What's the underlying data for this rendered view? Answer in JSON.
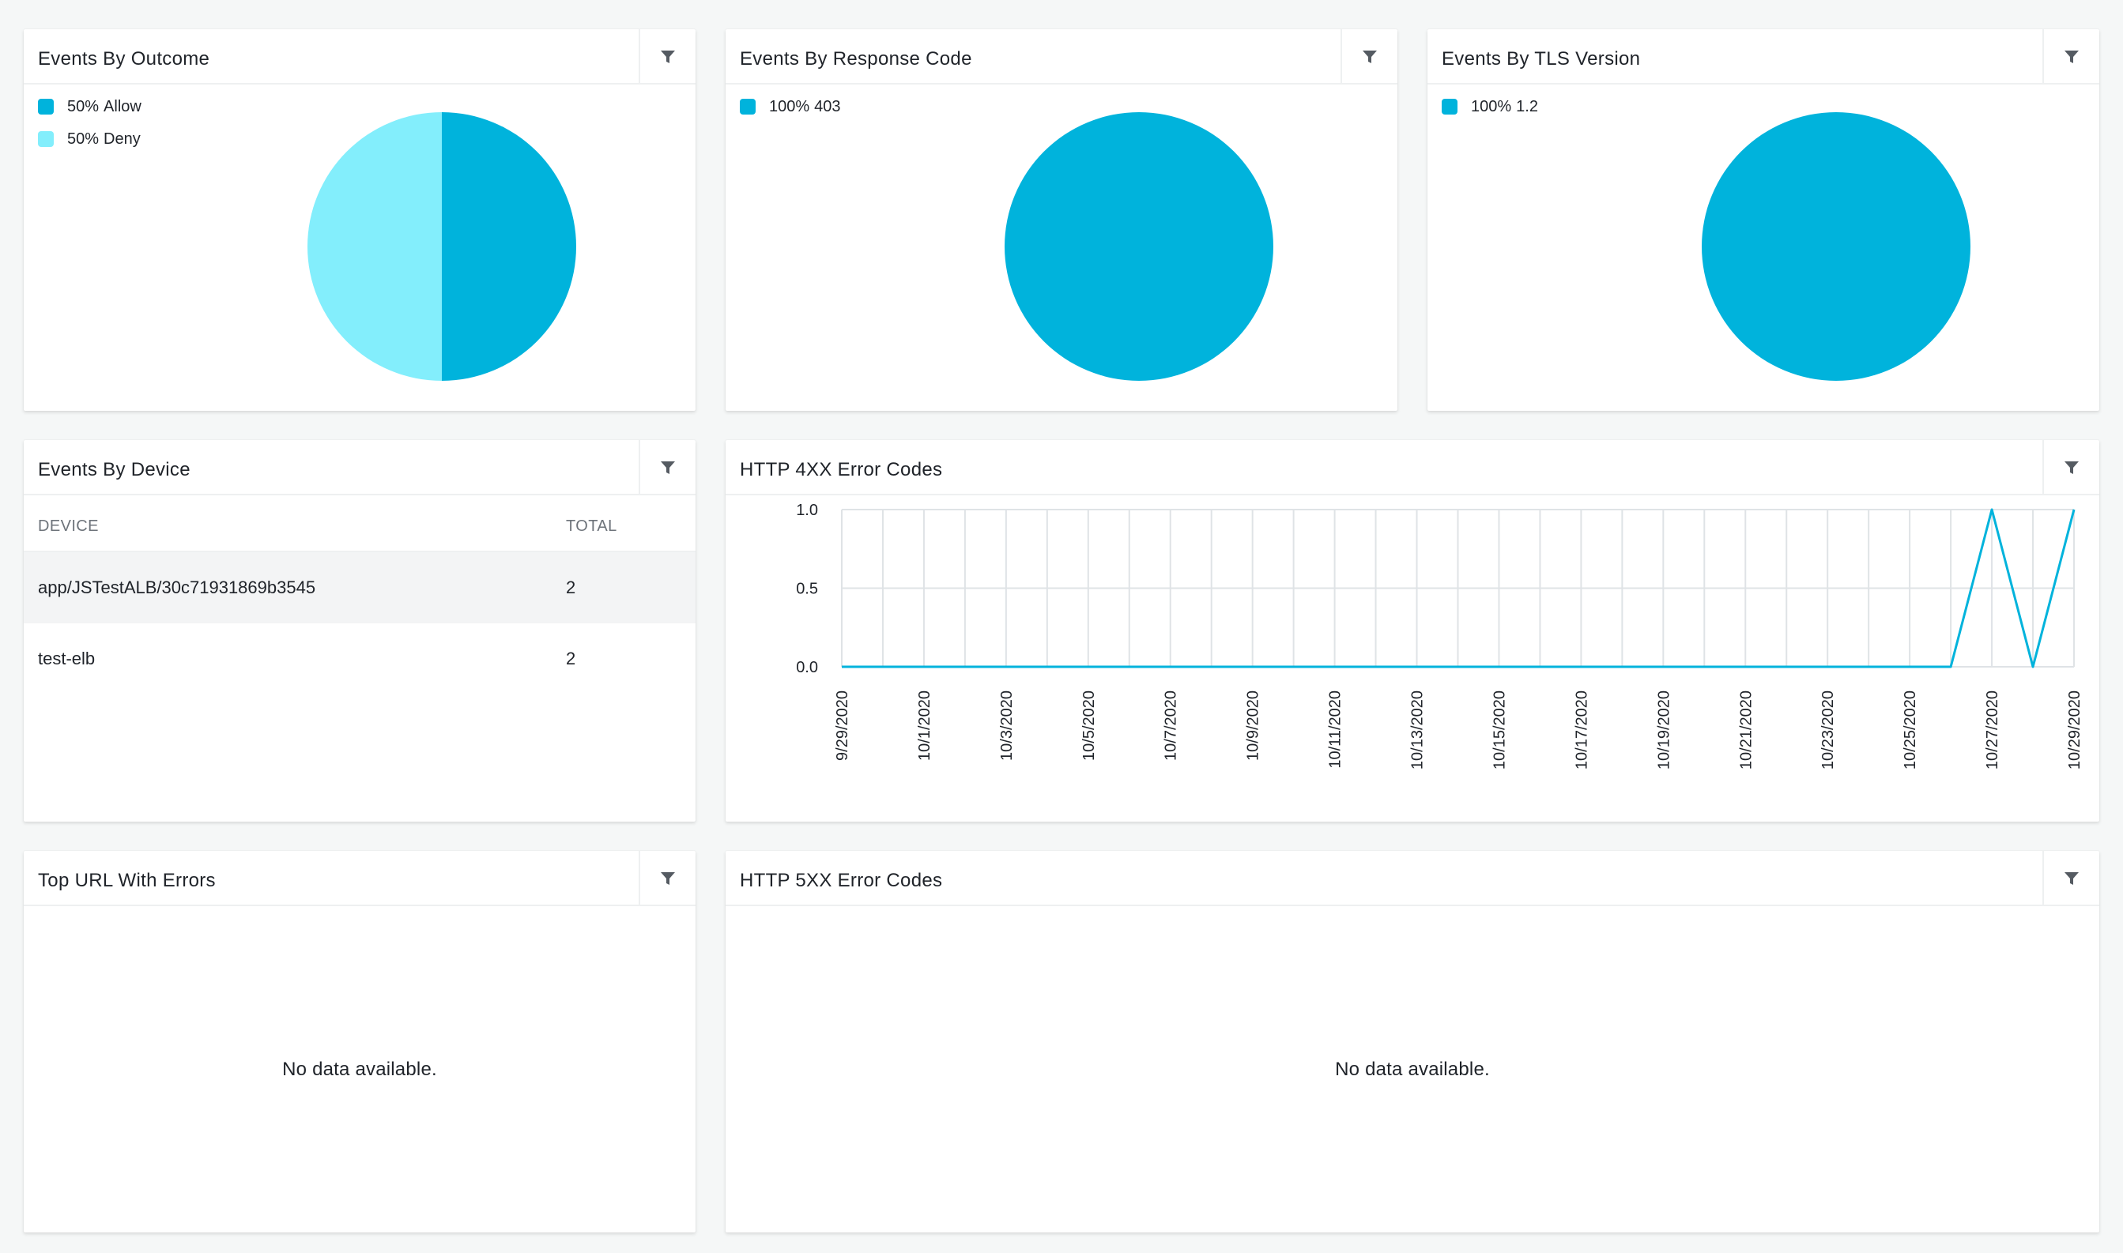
{
  "icons": {
    "filter": "filter-funnel-icon"
  },
  "colors": {
    "primary": "#00b3dc",
    "light": "#83eefc",
    "grid": "#dfe3e6",
    "text": "#1f2329"
  },
  "outcome": {
    "title": "Events By Outcome",
    "legend": [
      {
        "percent": "50%",
        "label": "Allow",
        "color": "#00b3dc"
      },
      {
        "percent": "50%",
        "label": "Deny",
        "color": "#83eefc"
      }
    ],
    "chart_data": {
      "type": "pie",
      "categories": [
        "Allow",
        "Deny"
      ],
      "values": [
        50,
        50
      ]
    }
  },
  "response_code": {
    "title": "Events By Response Code",
    "legend": [
      {
        "percent": "100%",
        "label": "403",
        "color": "#00b3dc"
      }
    ],
    "chart_data": {
      "type": "pie",
      "categories": [
        "403"
      ],
      "values": [
        100
      ]
    }
  },
  "tls": {
    "title": "Events By TLS Version",
    "legend": [
      {
        "percent": "100%",
        "label": "1.2",
        "color": "#00b3dc"
      }
    ],
    "chart_data": {
      "type": "pie",
      "categories": [
        "1.2"
      ],
      "values": [
        100
      ]
    }
  },
  "device": {
    "title": "Events By Device",
    "columns": [
      "DEVICE",
      "TOTAL"
    ],
    "rows": [
      {
        "device": "app/JSTestALB/30c71931869b3545",
        "total": "2"
      },
      {
        "device": "test-elb",
        "total": "2"
      }
    ]
  },
  "http4xx": {
    "title": "HTTP 4XX Error Codes",
    "chart_data": {
      "type": "line",
      "x": [
        "9/29/2020",
        "9/30/2020",
        "10/1/2020",
        "10/2/2020",
        "10/3/2020",
        "10/4/2020",
        "10/5/2020",
        "10/6/2020",
        "10/7/2020",
        "10/8/2020",
        "10/9/2020",
        "10/10/2020",
        "10/11/2020",
        "10/12/2020",
        "10/13/2020",
        "10/14/2020",
        "10/15/2020",
        "10/16/2020",
        "10/17/2020",
        "10/18/2020",
        "10/19/2020",
        "10/20/2020",
        "10/21/2020",
        "10/22/2020",
        "10/23/2020",
        "10/24/2020",
        "10/25/2020",
        "10/26/2020",
        "10/27/2020",
        "10/28/2020",
        "10/29/2020"
      ],
      "x_tick_labels": [
        "9/29/2020",
        "10/1/2020",
        "10/3/2020",
        "10/5/2020",
        "10/7/2020",
        "10/9/2020",
        "10/11/2020",
        "10/13/2020",
        "10/15/2020",
        "10/17/2020",
        "10/19/2020",
        "10/21/2020",
        "10/23/2020",
        "10/25/2020",
        "10/27/2020",
        "10/29/2020"
      ],
      "y_tick_labels": [
        "1.0",
        "0.5",
        "0.0"
      ],
      "values": [
        0,
        0,
        0,
        0,
        0,
        0,
        0,
        0,
        0,
        0,
        0,
        0,
        0,
        0,
        0,
        0,
        0,
        0,
        0,
        0,
        0,
        0,
        0,
        0,
        0,
        0,
        0,
        0,
        1,
        0,
        1
      ],
      "ylim": [
        0,
        1
      ],
      "grid": true,
      "legend": "none"
    }
  },
  "top_url": {
    "title": "Top URL With Errors",
    "empty": "No data available."
  },
  "http5xx": {
    "title": "HTTP 5XX Error Codes",
    "empty": "No data available."
  }
}
